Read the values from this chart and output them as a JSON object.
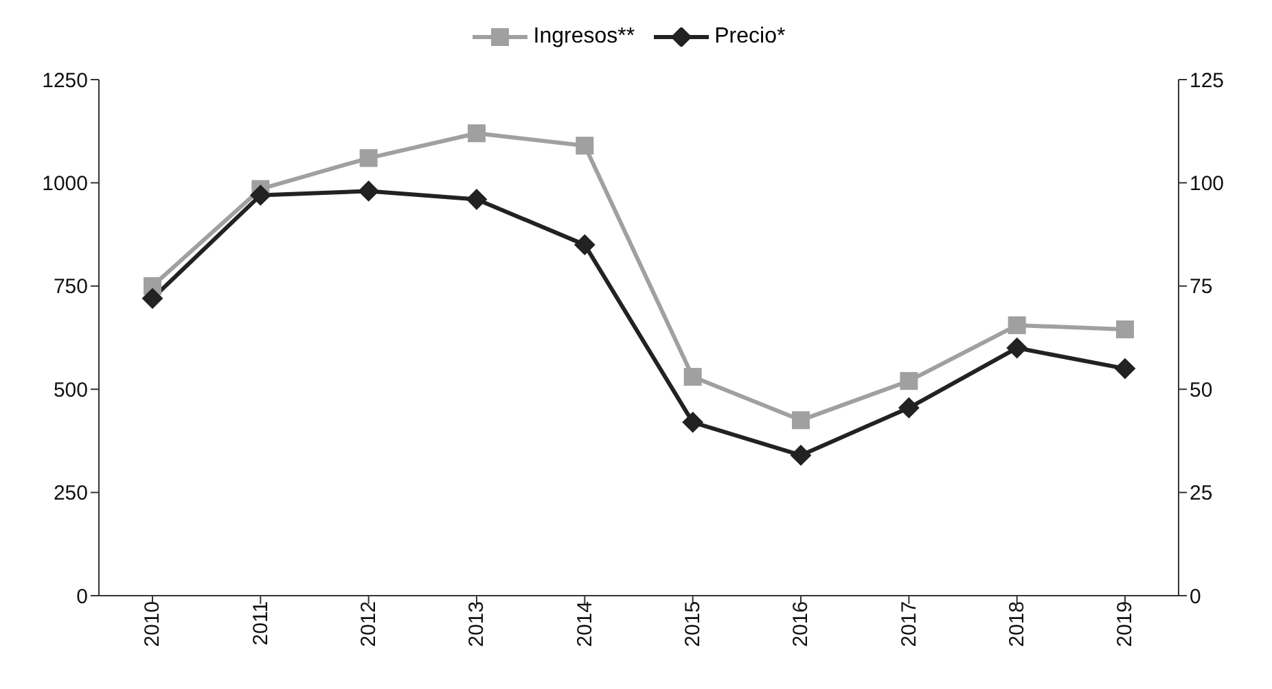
{
  "chart_data": {
    "type": "line",
    "categories": [
      "2010",
      "2011",
      "2012",
      "2013",
      "2014",
      "2015",
      "2016",
      "2017",
      "2018",
      "2019"
    ],
    "series": [
      {
        "name": "Ingresos**",
        "color": "#a0a0a0",
        "marker": "square",
        "values": [
          750,
          985,
          1060,
          1120,
          1090,
          530,
          425,
          520,
          655,
          645
        ]
      },
      {
        "name": "Precio*",
        "color": "#222222",
        "marker": "diamond",
        "axis": "y2",
        "values": [
          72,
          97,
          98,
          96,
          85,
          42,
          34,
          45.5,
          60,
          55
        ]
      }
    ],
    "ylim": [
      0,
      1250
    ],
    "yticks": [
      0,
      250,
      500,
      750,
      1000,
      1250
    ],
    "y2lim": [
      0,
      125
    ],
    "y2ticks": [
      0,
      25,
      50,
      75,
      100,
      125
    ],
    "legend": "top"
  }
}
